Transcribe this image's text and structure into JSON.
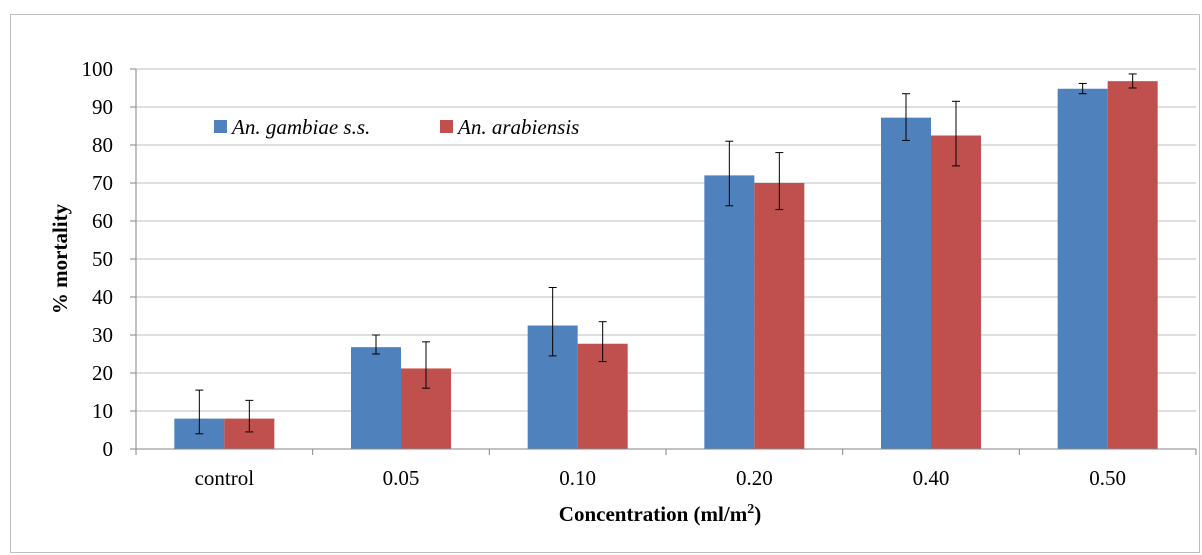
{
  "chart_data": {
    "type": "bar",
    "title": "",
    "xlabel": "Concentration (ml/m",
    "xlabel_superscript": "2",
    "xlabel_suffix": ")",
    "ylabel": "% mortality",
    "ylim": [
      0,
      100
    ],
    "yticks": [
      0,
      10,
      20,
      30,
      40,
      50,
      60,
      70,
      80,
      90,
      100
    ],
    "grid": true,
    "legend_position": "top-left",
    "categories": [
      "control",
      "0.05",
      "0.10",
      "0.20",
      "0.40",
      "0.50"
    ],
    "series": [
      {
        "name": "An. gambiae s.s.",
        "color": "#4f81bd",
        "values": [
          8,
          26.8,
          32.5,
          72,
          87.2,
          94.8
        ],
        "error": [
          [
            4,
            15.5
          ],
          [
            25,
            30
          ],
          [
            24.5,
            42.5
          ],
          [
            64,
            81
          ],
          [
            81.2,
            93.5
          ],
          [
            93.5,
            96.2
          ]
        ]
      },
      {
        "name": "An. arabiensis",
        "color": "#c0504d",
        "values": [
          8,
          21.2,
          27.7,
          70,
          82.5,
          96.8
        ],
        "error": [
          [
            4.5,
            12.8
          ],
          [
            16,
            28.2
          ],
          [
            23,
            33.5
          ],
          [
            63,
            78
          ],
          [
            74.5,
            91.5
          ],
          [
            95,
            98.7
          ]
        ]
      }
    ]
  }
}
